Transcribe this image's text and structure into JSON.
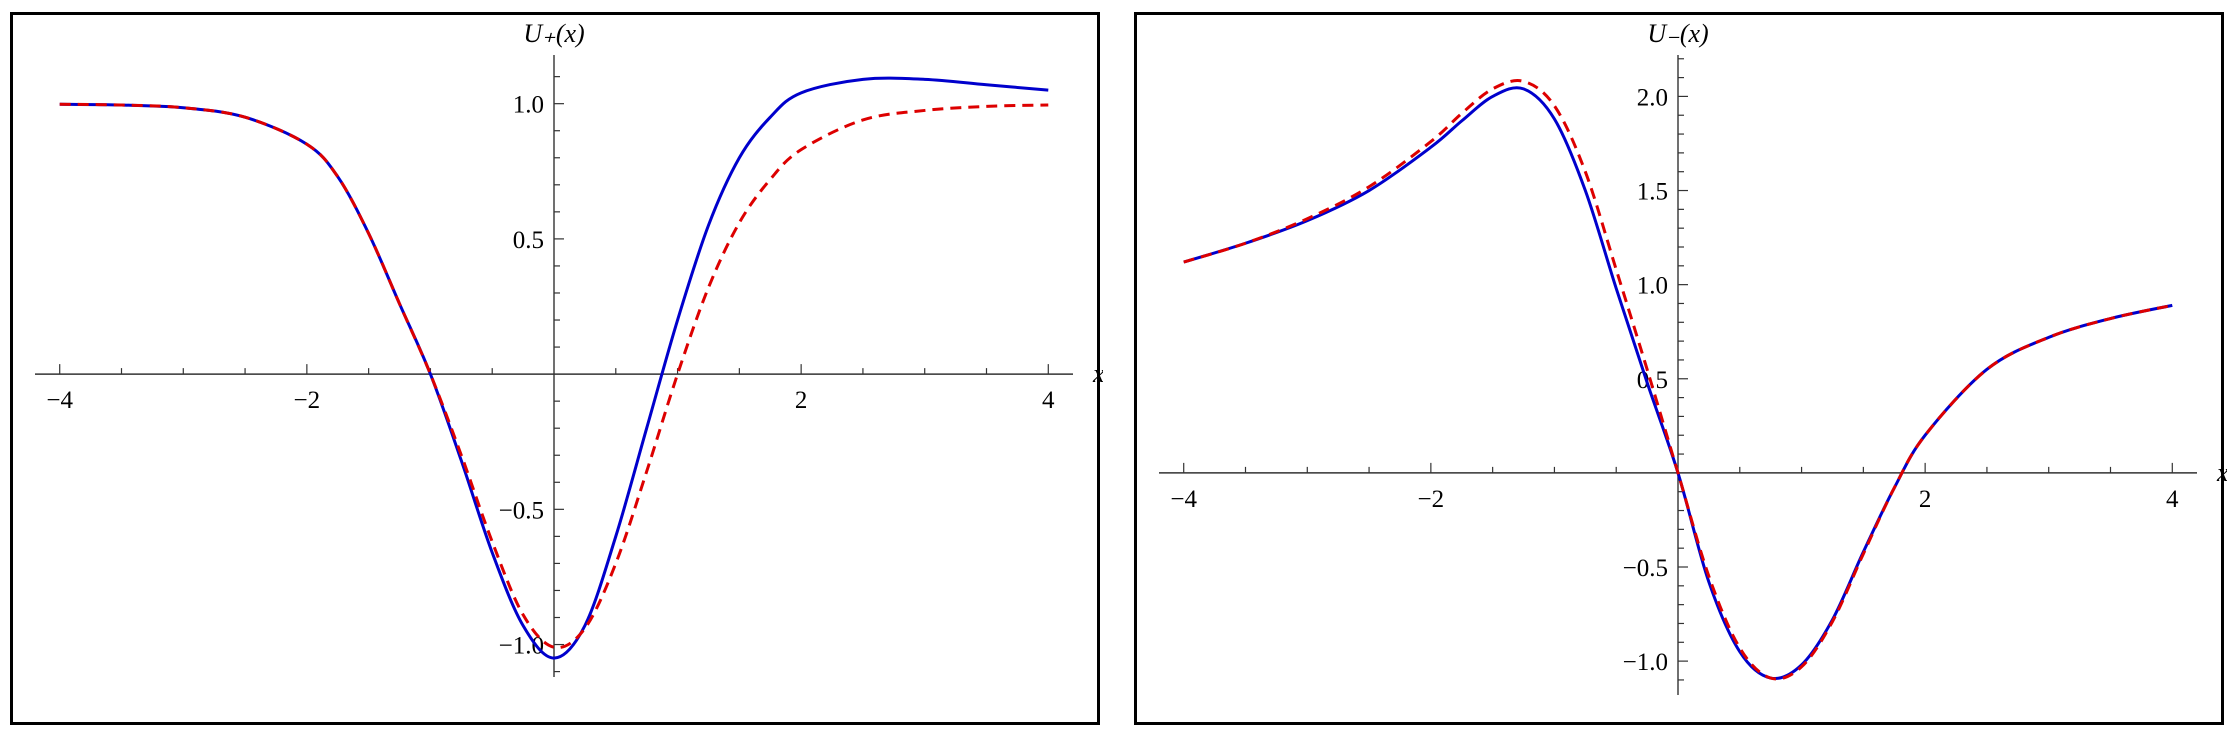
{
  "chart_data": [
    {
      "type": "line",
      "title": "U₊(x)",
      "xlabel": "x",
      "ylabel": "U₊(x)",
      "xlim": [
        -4.2,
        4.2
      ],
      "ylim": [
        -1.12,
        1.18
      ],
      "x_ticks": [
        -4,
        -2,
        2,
        4
      ],
      "x_tick_labels": [
        "−4",
        "−2",
        "2",
        "4"
      ],
      "y_ticks": [
        -1.0,
        -0.5,
        0.5,
        1.0
      ],
      "y_tick_labels": [
        "−1.0",
        "−0.5",
        "0.5",
        "1.0"
      ],
      "grid": false,
      "series": [
        {
          "style": "solid",
          "color": "#0000cc",
          "x": [
            -4,
            -3.5,
            -3,
            -2.5,
            -2,
            -1.75,
            -1.5,
            -1.25,
            -1,
            -0.75,
            -0.5,
            -0.25,
            0,
            0.25,
            0.5,
            0.75,
            1,
            1.25,
            1.5,
            1.75,
            2,
            2.5,
            3,
            3.5,
            4
          ],
          "y": [
            0.998,
            0.995,
            0.985,
            0.95,
            0.85,
            0.73,
            0.52,
            0.26,
            0.0,
            -0.32,
            -0.66,
            -0.93,
            -1.05,
            -0.93,
            -0.6,
            -0.2,
            0.2,
            0.55,
            0.8,
            0.95,
            1.04,
            1.09,
            1.09,
            1.07,
            1.05
          ]
        },
        {
          "style": "dashed",
          "color": "#dd0000",
          "x": [
            -4,
            -3.5,
            -3,
            -2.5,
            -2,
            -1.75,
            -1.5,
            -1.25,
            -1,
            -0.75,
            -0.5,
            -0.25,
            0,
            0.25,
            0.5,
            0.75,
            1,
            1.25,
            1.5,
            1.75,
            2,
            2.5,
            3,
            3.5,
            4
          ],
          "y": [
            0.998,
            0.995,
            0.985,
            0.95,
            0.85,
            0.73,
            0.52,
            0.26,
            0.0,
            -0.3,
            -0.62,
            -0.89,
            -1.01,
            -0.94,
            -0.7,
            -0.36,
            0.0,
            0.32,
            0.56,
            0.72,
            0.83,
            0.94,
            0.975,
            0.99,
            0.995
          ]
        }
      ]
    },
    {
      "type": "line",
      "title": "U₋(x)",
      "xlabel": "x",
      "ylabel": "U₋(x)",
      "xlim": [
        -4.2,
        4.2
      ],
      "ylim": [
        -1.18,
        2.22
      ],
      "x_ticks": [
        -4,
        -2,
        2,
        4
      ],
      "x_tick_labels": [
        "−4",
        "−2",
        "2",
        "4"
      ],
      "y_ticks": [
        -1.0,
        -0.5,
        0.5,
        1.0,
        1.5,
        2.0
      ],
      "y_tick_labels": [
        "−1.0",
        "−0.5",
        "0.5",
        "1.0",
        "1.5",
        "2.0"
      ],
      "grid": false,
      "series": [
        {
          "style": "solid",
          "color": "#0000cc",
          "x": [
            -4,
            -3.5,
            -3,
            -2.5,
            -2,
            -1.75,
            -1.5,
            -1.25,
            -1,
            -0.75,
            -0.5,
            -0.25,
            0,
            0.25,
            0.5,
            0.75,
            1,
            1.25,
            1.5,
            1.75,
            2,
            2.5,
            3,
            3.5,
            4
          ],
          "y": [
            1.12,
            1.22,
            1.34,
            1.5,
            1.73,
            1.87,
            2.0,
            2.04,
            1.88,
            1.5,
            0.98,
            0.48,
            0.0,
            -0.58,
            -0.95,
            -1.09,
            -1.02,
            -0.78,
            -0.42,
            -0.08,
            0.2,
            0.55,
            0.72,
            0.82,
            0.89
          ]
        },
        {
          "style": "dashed",
          "color": "#dd0000",
          "x": [
            -4,
            -3.5,
            -3,
            -2.5,
            -2,
            -1.75,
            -1.5,
            -1.25,
            -1,
            -0.75,
            -0.5,
            -0.25,
            0,
            0.25,
            0.5,
            0.75,
            1,
            1.25,
            1.5,
            1.75,
            2,
            2.5,
            3,
            3.5,
            4
          ],
          "y": [
            1.12,
            1.22,
            1.35,
            1.52,
            1.76,
            1.91,
            2.04,
            2.08,
            1.95,
            1.6,
            1.08,
            0.55,
            0.0,
            -0.55,
            -0.93,
            -1.09,
            -1.03,
            -0.79,
            -0.43,
            -0.08,
            0.2,
            0.55,
            0.72,
            0.82,
            0.89
          ]
        }
      ]
    }
  ]
}
